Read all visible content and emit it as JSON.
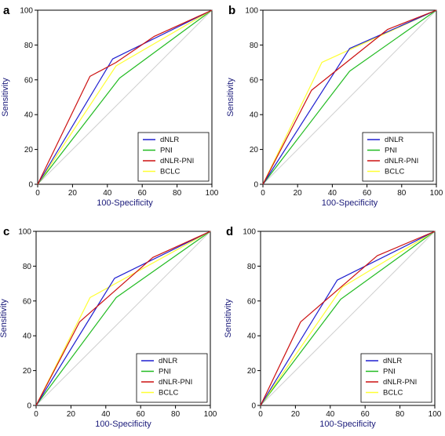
{
  "chart_data": [
    {
      "type": "line",
      "panel": "a",
      "xlabel": "100-Specificity",
      "ylabel": "Sensitivity",
      "xlim": [
        0,
        100
      ],
      "ylim": [
        0,
        100
      ],
      "xticks": [
        0,
        20,
        40,
        60,
        80,
        100
      ],
      "yticks": [
        0,
        20,
        40,
        60,
        80,
        100
      ],
      "grid": false,
      "legend_position": "bottom-right",
      "series": [
        {
          "name": "dNLR",
          "color": "#1f1fd0",
          "x": [
            0,
            43,
            100
          ],
          "y": [
            0,
            72,
            100
          ]
        },
        {
          "name": "PNI",
          "color": "#22bb22",
          "x": [
            0,
            47,
            100
          ],
          "y": [
            0,
            61,
            100
          ]
        },
        {
          "name": "dNLR-PNI",
          "color": "#cc1111",
          "x": [
            0,
            30,
            45,
            67,
            100
          ],
          "y": [
            0,
            62,
            70,
            85,
            100
          ]
        },
        {
          "name": "BCLC",
          "color": "#ffff33",
          "x": [
            0,
            45,
            100
          ],
          "y": [
            0,
            68,
            100
          ]
        }
      ]
    },
    {
      "type": "line",
      "panel": "b",
      "xlabel": "100-Specificity",
      "ylabel": "Sensitivity",
      "xlim": [
        0,
        100
      ],
      "ylim": [
        0,
        100
      ],
      "xticks": [
        0,
        20,
        40,
        60,
        80,
        100
      ],
      "yticks": [
        0,
        20,
        40,
        60,
        80,
        100
      ],
      "grid": false,
      "legend_position": "bottom-right",
      "series": [
        {
          "name": "dNLR",
          "color": "#1f1fd0",
          "x": [
            0,
            50,
            100
          ],
          "y": [
            0,
            78,
            100
          ]
        },
        {
          "name": "PNI",
          "color": "#22bb22",
          "x": [
            0,
            50,
            100
          ],
          "y": [
            0,
            65,
            100
          ]
        },
        {
          "name": "dNLR-PNI",
          "color": "#cc1111",
          "x": [
            0,
            28,
            72,
            100
          ],
          "y": [
            0,
            54,
            89,
            100
          ]
        },
        {
          "name": "BCLC",
          "color": "#ffff33",
          "x": [
            0,
            34,
            100
          ],
          "y": [
            0,
            70,
            100
          ]
        }
      ]
    },
    {
      "type": "line",
      "panel": "c",
      "xlabel": "100-Specificity",
      "ylabel": "Sensitivity",
      "xlim": [
        0,
        100
      ],
      "ylim": [
        0,
        100
      ],
      "xticks": [
        0,
        20,
        40,
        60,
        80,
        100
      ],
      "yticks": [
        0,
        20,
        40,
        60,
        80,
        100
      ],
      "grid": false,
      "legend_position": "bottom-right",
      "series": [
        {
          "name": "dNLR",
          "color": "#1f1fd0",
          "x": [
            0,
            45,
            100
          ],
          "y": [
            0,
            73,
            100
          ]
        },
        {
          "name": "PNI",
          "color": "#22bb22",
          "x": [
            0,
            46,
            100
          ],
          "y": [
            0,
            62,
            100
          ]
        },
        {
          "name": "dNLR-PNI",
          "color": "#cc1111",
          "x": [
            0,
            25,
            67,
            100
          ],
          "y": [
            0,
            48,
            85,
            100
          ]
        },
        {
          "name": "BCLC",
          "color": "#ffff33",
          "x": [
            0,
            31,
            100
          ],
          "y": [
            0,
            62,
            100
          ]
        }
      ]
    },
    {
      "type": "line",
      "panel": "d",
      "xlabel": "100-Specificity",
      "ylabel": "Sensitivity",
      "xlim": [
        0,
        100
      ],
      "ylim": [
        0,
        100
      ],
      "xticks": [
        0,
        20,
        40,
        60,
        80,
        100
      ],
      "yticks": [
        0,
        20,
        40,
        60,
        80,
        100
      ],
      "grid": false,
      "legend_position": "bottom-right",
      "series": [
        {
          "name": "dNLR",
          "color": "#1f1fd0",
          "x": [
            0,
            44,
            100
          ],
          "y": [
            0,
            72,
            100
          ]
        },
        {
          "name": "PNI",
          "color": "#22bb22",
          "x": [
            0,
            46,
            100
          ],
          "y": [
            0,
            61,
            100
          ]
        },
        {
          "name": "dNLR-PNI",
          "color": "#cc1111",
          "x": [
            0,
            23,
            67,
            100
          ],
          "y": [
            0,
            48,
            86,
            100
          ]
        },
        {
          "name": "BCLC",
          "color": "#ffff33",
          "x": [
            0,
            47,
            100
          ],
          "y": [
            0,
            68,
            100
          ]
        }
      ]
    }
  ]
}
